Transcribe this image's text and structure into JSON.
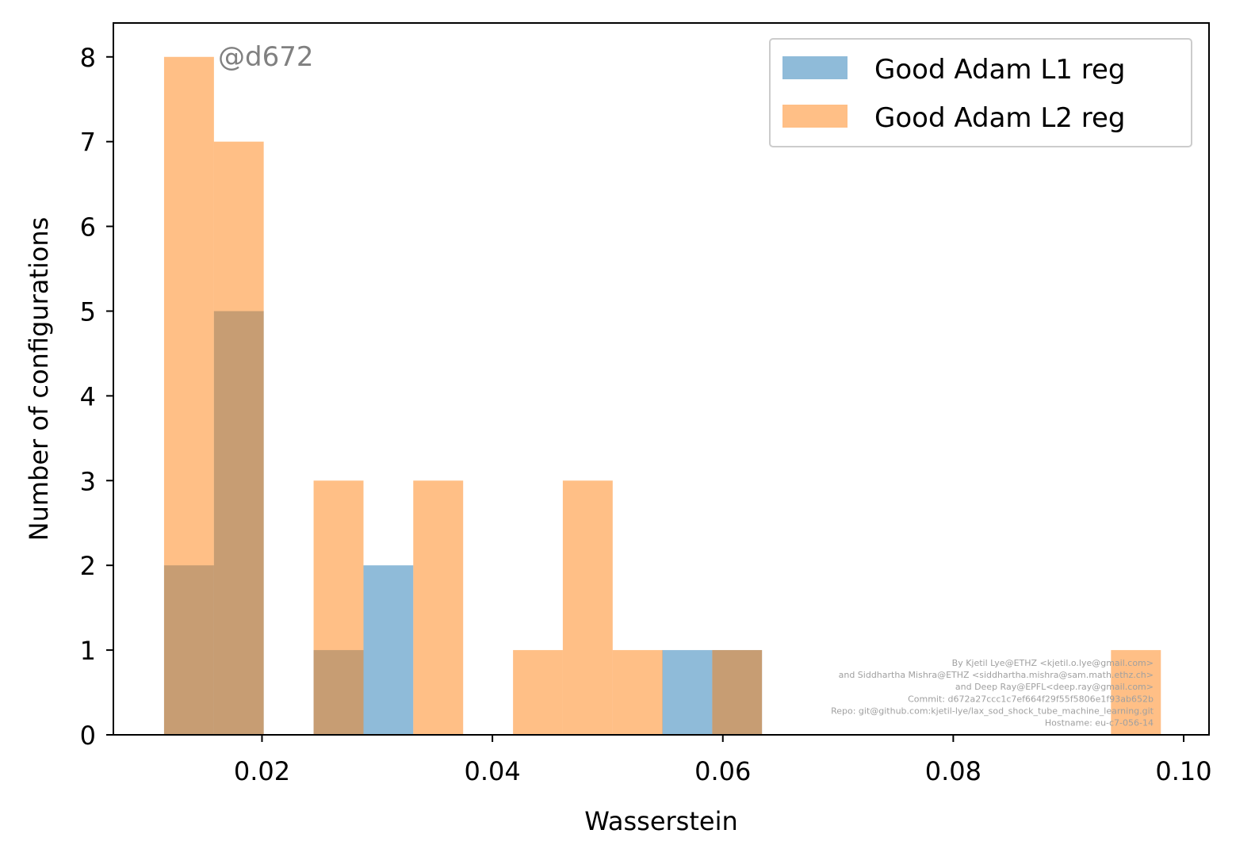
{
  "chart_data": {
    "type": "bar",
    "title": "",
    "xlabel": "Wasserstein",
    "ylabel": "Number of configurations",
    "xlim": [
      0.0071,
      0.1022
    ],
    "ylim": [
      0,
      8.4
    ],
    "xticks": [
      0.02,
      0.04,
      0.06,
      0.08,
      0.1
    ],
    "xtick_labels": [
      "0.02",
      "0.04",
      "0.06",
      "0.08",
      "0.10"
    ],
    "yticks": [
      0,
      1,
      2,
      3,
      4,
      5,
      6,
      7,
      8
    ],
    "ytick_labels": [
      "0",
      "1",
      "2",
      "3",
      "4",
      "5",
      "6",
      "7",
      "8"
    ],
    "grid": false,
    "legend_position": "upper right",
    "series": [
      {
        "name": "Good Adam L1 reg",
        "color": "#1f77b4",
        "opacity": 0.5,
        "bins": [
          {
            "x0": 0.0115,
            "x1": 0.01583,
            "count": 2
          },
          {
            "x0": 0.01583,
            "x1": 0.02015,
            "count": 5
          },
          {
            "x0": 0.02448,
            "x1": 0.02881,
            "count": 1
          },
          {
            "x0": 0.02881,
            "x1": 0.03313,
            "count": 2
          },
          {
            "x0": 0.05475,
            "x1": 0.05908,
            "count": 1
          },
          {
            "x0": 0.05908,
            "x1": 0.0634,
            "count": 1
          }
        ]
      },
      {
        "name": "Good Adam L2 reg",
        "color": "#ff7f0e",
        "opacity": 0.5,
        "bins": [
          {
            "x0": 0.0115,
            "x1": 0.01583,
            "count": 8
          },
          {
            "x0": 0.01583,
            "x1": 0.02015,
            "count": 7
          },
          {
            "x0": 0.02448,
            "x1": 0.02881,
            "count": 3
          },
          {
            "x0": 0.03313,
            "x1": 0.03746,
            "count": 3
          },
          {
            "x0": 0.04179,
            "x1": 0.04611,
            "count": 1
          },
          {
            "x0": 0.04611,
            "x1": 0.05044,
            "count": 3
          },
          {
            "x0": 0.05044,
            "x1": 0.05477,
            "count": 1
          },
          {
            "x0": 0.05908,
            "x1": 0.0634,
            "count": 1
          },
          {
            "x0": 0.09369,
            "x1": 0.09802,
            "count": 1
          }
        ]
      }
    ],
    "annotation": "@d672",
    "annotation_color": "#808080",
    "credits": [
      "By Kjetil Lye@ETHZ <kjetil.o.lye@gmail.com>",
      "and Siddhartha Mishra@ETHZ <siddhartha.mishra@sam.math.ethz.ch>",
      "and Deep Ray@EPFL<deep.ray@gmail.com>",
      "Commit: d672a27ccc1c7ef664f29f55f5806e1f93ab652b",
      "Repo: git@github.com:kjetil-lye/lax_sod_shock_tube_machine_learning.git",
      "Hostname: eu-c7-056-14"
    ],
    "credits_color": "#a0a0a0"
  }
}
